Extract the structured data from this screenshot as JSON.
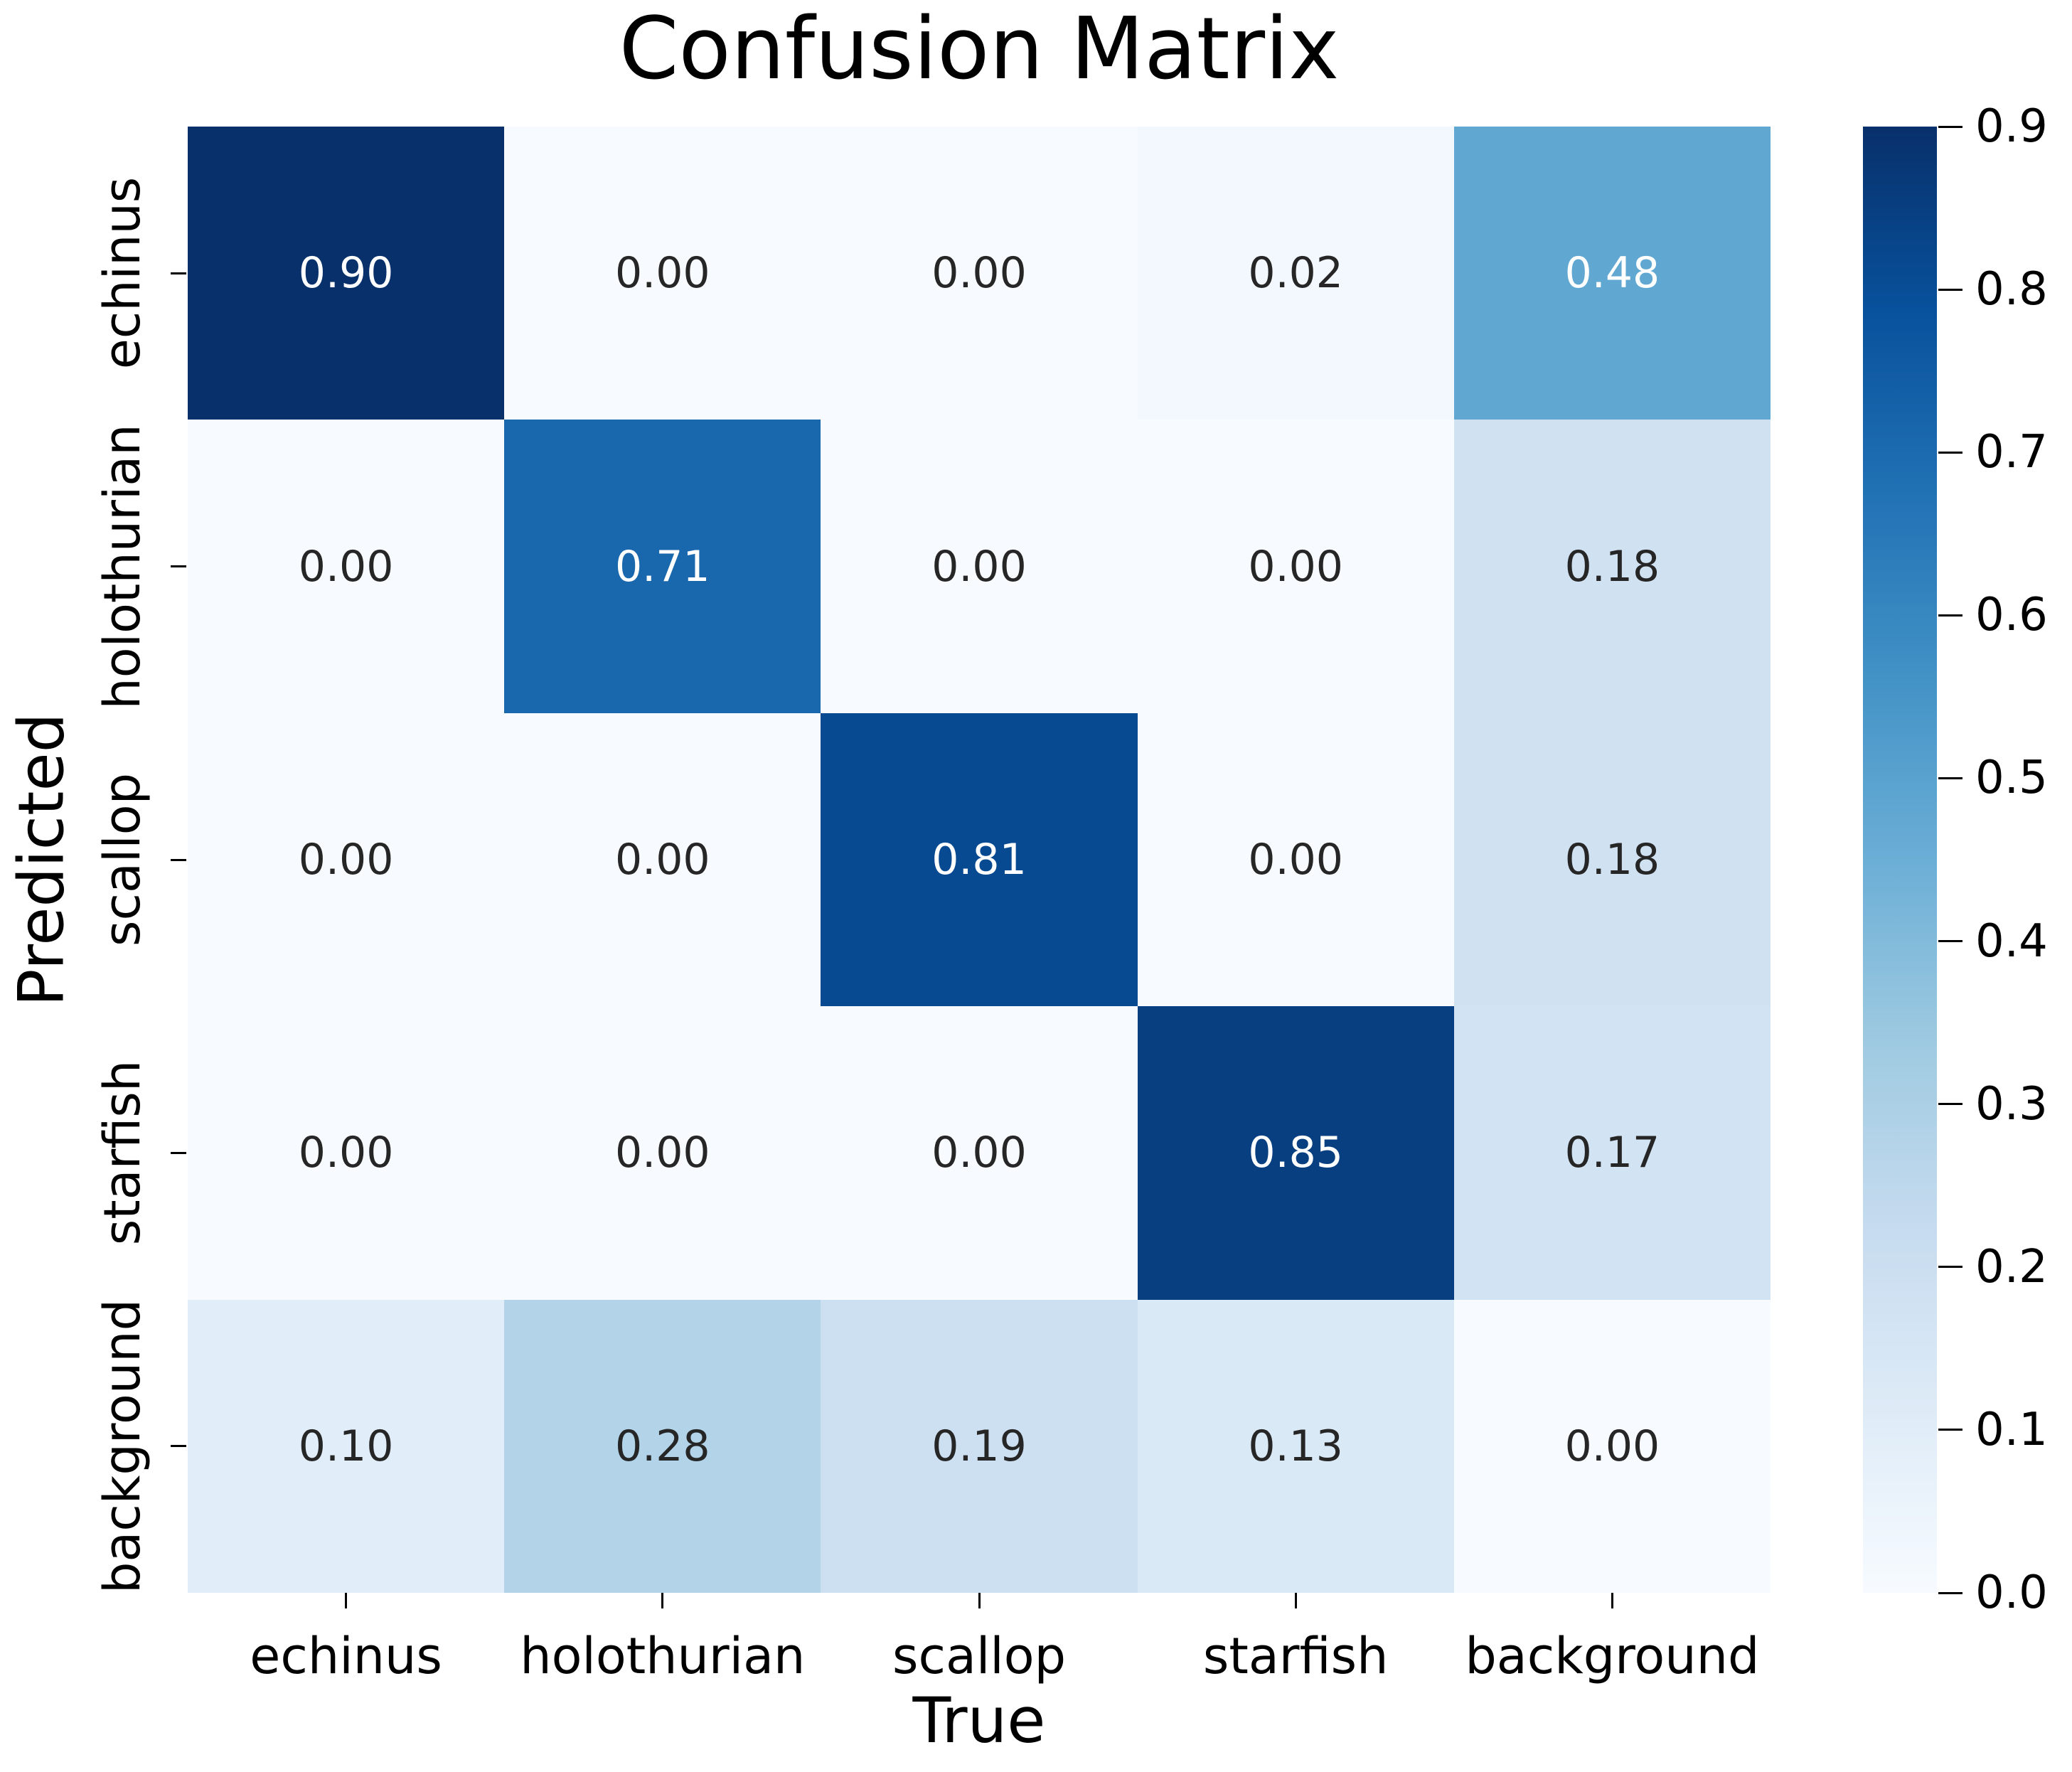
{
  "chart_data": {
    "type": "heatmap",
    "title": "Confusion Matrix",
    "xlabel": "True",
    "ylabel": "Predicted",
    "x_categories": [
      "echinus",
      "holothurian",
      "scallop",
      "starfish",
      "background"
    ],
    "y_categories": [
      "echinus",
      "holothurian",
      "scallop",
      "starfish",
      "background"
    ],
    "values": [
      [
        0.9,
        0.0,
        0.0,
        0.02,
        0.48
      ],
      [
        0.0,
        0.71,
        0.0,
        0.0,
        0.18
      ],
      [
        0.0,
        0.0,
        0.81,
        0.0,
        0.18
      ],
      [
        0.0,
        0.0,
        0.0,
        0.85,
        0.17
      ],
      [
        0.1,
        0.28,
        0.19,
        0.13,
        0.0
      ]
    ],
    "value_decimals": 2,
    "vmin": 0.0,
    "vmax": 0.9,
    "colorbar_ticks": [
      "0.0",
      "0.1",
      "0.2",
      "0.3",
      "0.4",
      "0.5",
      "0.6",
      "0.7",
      "0.8",
      "0.9"
    ],
    "colorbar_position": "right",
    "grid": false,
    "background": "#ffffff",
    "text_color": "#000000",
    "colormap": {
      "name": "Blues",
      "stops": [
        {
          "t": 0.0,
          "color": "#f7fbff"
        },
        {
          "t": 0.125,
          "color": "#deebf7"
        },
        {
          "t": 0.25,
          "color": "#c6dbef"
        },
        {
          "t": 0.375,
          "color": "#9ecae1"
        },
        {
          "t": 0.5,
          "color": "#6baed6"
        },
        {
          "t": 0.625,
          "color": "#4292c6"
        },
        {
          "t": 0.75,
          "color": "#2171b5"
        },
        {
          "t": 0.875,
          "color": "#08519c"
        },
        {
          "t": 1.0,
          "color": "#08306b"
        }
      ]
    },
    "annotation_colors": {
      "light_text": "#ffffff",
      "dark_text": "#262626",
      "luminance_threshold": 0.408
    }
  }
}
